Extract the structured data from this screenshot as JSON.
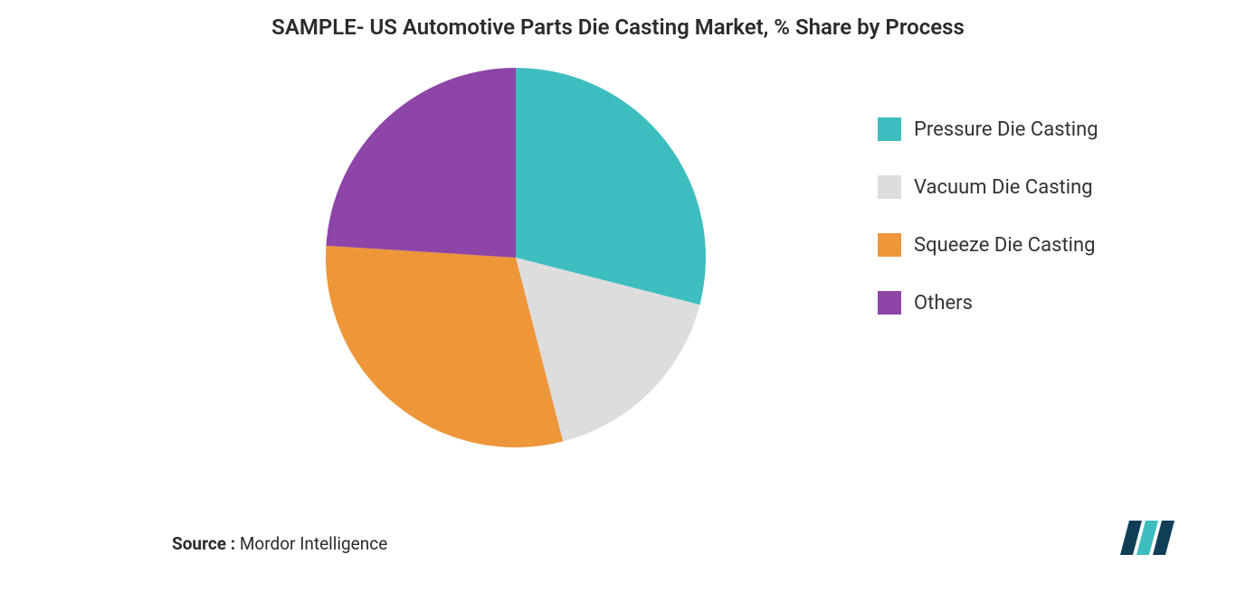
{
  "title": "SAMPLE- US Automotive Parts Die Casting Market, % Share by Process",
  "title_fontsize": 24,
  "title_color": "#2b2b2b",
  "chart": {
    "type": "pie",
    "background_color": "#ffffff",
    "radius": 210,
    "start_angle_deg": -90,
    "slices": [
      {
        "label": "Pressure Die Casting",
        "value": 29,
        "color": "#3ebdbf"
      },
      {
        "label": "Vacuum Die Casting",
        "value": 17,
        "color": "#dddddd"
      },
      {
        "label": "Squeeze Die Casting",
        "value": 30,
        "color": "#ed963a"
      },
      {
        "label": "Others",
        "value": 24,
        "color": "#8e45a8"
      }
    ]
  },
  "legend": {
    "fontsize": 22,
    "text_color": "#333333",
    "swatch_size": 26
  },
  "source": {
    "label": "Source :",
    "value": "Mordor Intelligence",
    "fontsize": 19,
    "color": "#2b2b2b"
  },
  "logo": {
    "bars": [
      "#113e57",
      "#3ebdbf",
      "#113e57"
    ],
    "text_color": "#113e57"
  }
}
